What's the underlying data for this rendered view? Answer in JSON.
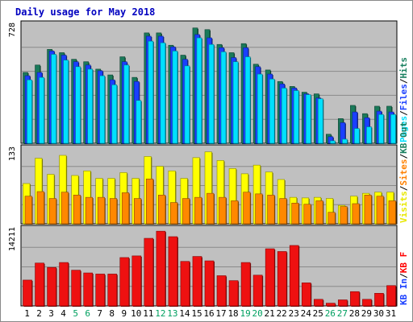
{
  "chart_data": {
    "type": "bar",
    "title": "Daily usage for May 2018",
    "x": [
      "1",
      "2",
      "3",
      "4",
      "5",
      "6",
      "7",
      "8",
      "9",
      "10",
      "11",
      "12",
      "13",
      "14",
      "15",
      "16",
      "17",
      "18",
      "19",
      "20",
      "21",
      "22",
      "23",
      "24",
      "25",
      "26",
      "27",
      "28",
      "29",
      "30",
      "31"
    ],
    "weekend_days": [
      "5",
      "6",
      "12",
      "13",
      "19",
      "20",
      "26",
      "27"
    ],
    "grid": true,
    "panels": [
      {
        "name": "hits-files-pages",
        "ymax_label": "728",
        "ylim": [
          0,
          728
        ],
        "legend": [
          {
            "text": "Pages",
            "color": "#00e0ff"
          },
          {
            "text": "Files",
            "color": "#1a3fff"
          },
          {
            "text": "Hits",
            "color": "#1a8060"
          }
        ],
        "series": [
          {
            "name": "Hits",
            "color": "#1a7a5a",
            "values": [
              430,
              475,
              570,
              550,
              510,
              495,
              450,
              415,
              525,
              400,
              670,
              670,
              595,
              535,
              700,
              690,
              600,
              550,
              605,
              480,
              445,
              375,
              345,
              310,
              300,
              55,
              150,
              230,
              180,
              225,
              225
            ]
          },
          {
            "name": "Files",
            "color": "#1a3fff",
            "values": [
              410,
              430,
              560,
              535,
              495,
              475,
              440,
              385,
              495,
              375,
              650,
              650,
              585,
              510,
              660,
              640,
              580,
              520,
              580,
              465,
              420,
              360,
              335,
              300,
              275,
              40,
              125,
              190,
              155,
              195,
              190
            ]
          },
          {
            "name": "Pages",
            "color": "#00e0ff",
            "values": [
              385,
              400,
              540,
              505,
              465,
              450,
              410,
              355,
              475,
              260,
              620,
              610,
              560,
              470,
              640,
              600,
              555,
              495,
              525,
              420,
              390,
              335,
              320,
              295,
              270,
              15,
              25,
              90,
              100,
              175,
              175
            ]
          }
        ]
      },
      {
        "name": "visits-sites",
        "ymax_label": "133",
        "ylim": [
          0,
          133
        ],
        "legend": [
          {
            "text": "Visits",
            "color": "#e8e800"
          },
          {
            "text": "Sites",
            "color": "#ff8000"
          },
          {
            "text": "KB Out",
            "color": "#1a8060"
          }
        ],
        "series": [
          {
            "name": "Visits",
            "color": "#ffff00",
            "values": [
              70,
              114,
              86,
              119,
              84,
              92,
              79,
              79,
              89,
              79,
              117,
              100,
              92,
              79,
              115,
              125,
              110,
              96,
              87,
              102,
              90,
              77,
              46,
              45,
              46,
              44,
              32,
              48,
              53,
              55,
              55
            ]
          },
          {
            "name": "Sites",
            "color": "#ff8800",
            "values": [
              48,
              56,
              44,
              55,
              50,
              46,
              46,
              44,
              54,
              44,
              78,
              50,
              37,
              44,
              46,
              53,
              46,
              40,
              55,
              52,
              50,
              44,
              36,
              34,
              40,
              20,
              30,
              35,
              50,
              48,
              40
            ]
          }
        ]
      },
      {
        "name": "kbytes",
        "ymax_label": "14211",
        "ylim": [
          0,
          14211
        ],
        "legend": [
          {
            "text": "KB In",
            "color": "#1a3fff"
          },
          {
            "text": "KB F",
            "color": "#ff0000"
          }
        ],
        "series": [
          {
            "name": "KB F",
            "color": "#ee1111",
            "values": [
              4700,
              7800,
              7000,
              7900,
              6500,
              6000,
              5800,
              5800,
              8800,
              9100,
              12300,
              13600,
              12600,
              8100,
              9000,
              8200,
              5500,
              4600,
              7900,
              5600,
              10400,
              9900,
              11000,
              4200,
              1200,
              500,
              1100,
              2600,
              1200,
              2300,
              3700
            ]
          }
        ]
      }
    ]
  }
}
